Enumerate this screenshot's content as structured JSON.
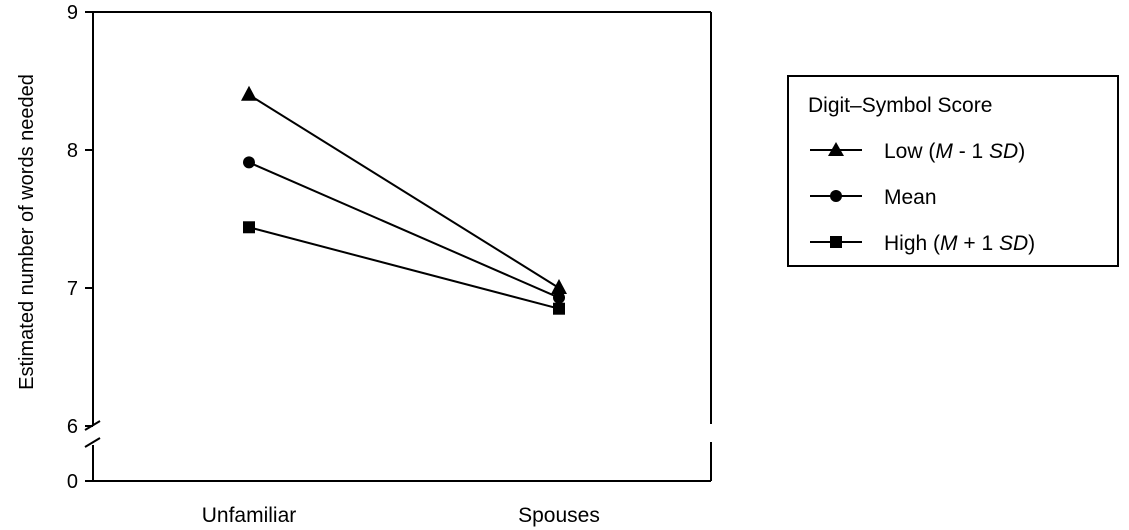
{
  "chart_data": {
    "type": "line",
    "title": "",
    "xlabel": "",
    "ylabel": "Estimated number of words needed",
    "categories": [
      "Unfamiliar",
      "Spouses"
    ],
    "y_ticks": [
      "0",
      "6",
      "7",
      "8",
      "9"
    ],
    "ylim": [
      6,
      9
    ],
    "axis_break": true,
    "grid": false,
    "legend": {
      "title": "Digit–Symbol Score",
      "placement": "right",
      "entries": [
        {
          "name": "Low",
          "term_a": "M",
          "op": " - 1 ",
          "term_b": "SD",
          "marker": "triangle-icon"
        },
        {
          "name": "Mean",
          "marker": "circle-icon"
        },
        {
          "name": "High",
          "term_a": "M",
          "op": " + 1 ",
          "term_b": "SD",
          "marker": "square-icon"
        }
      ]
    },
    "series": [
      {
        "name": "Low (M - 1 SD)",
        "marker": "triangle",
        "values": [
          8.4,
          7.0
        ]
      },
      {
        "name": "Mean",
        "marker": "circle",
        "values": [
          7.91,
          6.93
        ]
      },
      {
        "name": "High (M + 1 SD)",
        "marker": "square",
        "values": [
          7.44,
          6.85
        ]
      }
    ]
  }
}
